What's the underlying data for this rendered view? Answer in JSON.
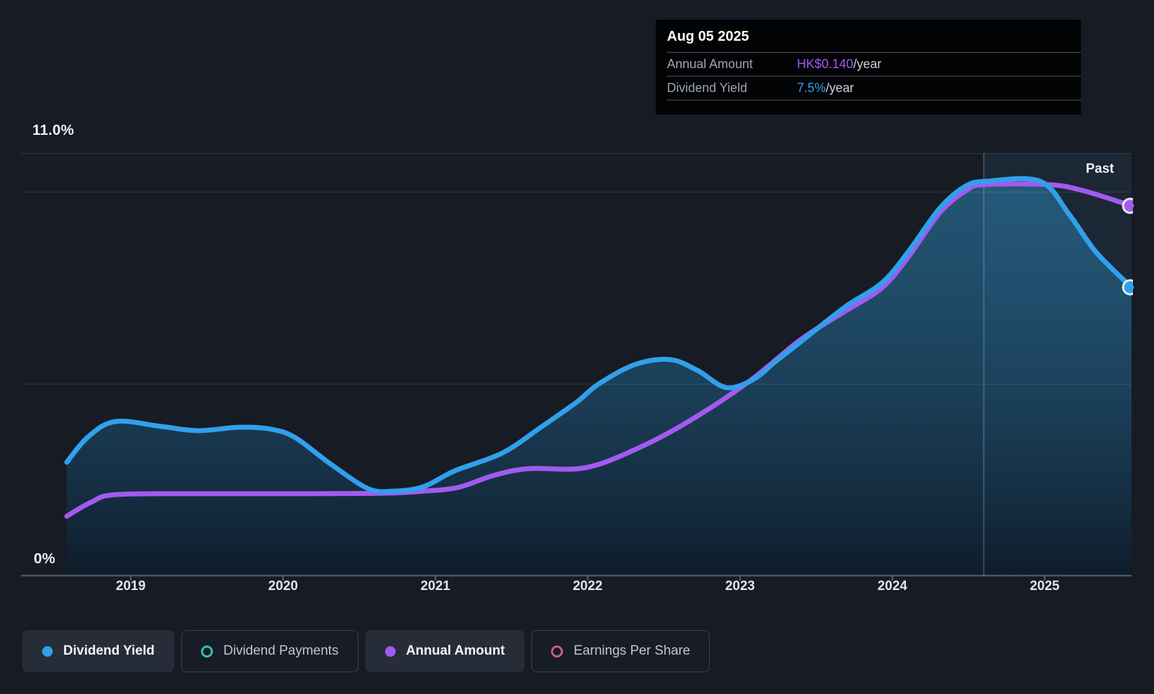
{
  "page": {
    "background": "#161b24"
  },
  "tooltip": {
    "date": "Aug 05 2025",
    "rows": [
      {
        "label": "Annual Amount",
        "value": "HK$0.140",
        "suffix": "/year",
        "color_key": "purple"
      },
      {
        "label": "Dividend Yield",
        "value": "7.5%",
        "suffix": "/year",
        "color_key": "blue"
      }
    ]
  },
  "axis": {
    "y_max_label": "11.0%",
    "y_min_label": "0%",
    "x_labels": [
      "2019",
      "2020",
      "2021",
      "2022",
      "2023",
      "2024",
      "2025"
    ],
    "past_label": "Past"
  },
  "colors": {
    "blue": "#31a0ea",
    "purple": "#a25af0",
    "teal": "#38c2b0",
    "pink": "#c75b8e",
    "grid": "rgba(255,255,255,0.12)",
    "axis_line": "#5c626a",
    "divider": "rgba(130,170,210,0.35)",
    "future_tint": "rgba(80,150,210,0.10)",
    "marker_stroke": "#e6ebef",
    "fill_top": "rgba(43,120,165,0.62)",
    "fill_bottom": "rgba(14,28,43,0.95)"
  },
  "legend": [
    {
      "label": "Dividend Yield",
      "marker": "dot",
      "color_key": "blue",
      "active": true
    },
    {
      "label": "Dividend Payments",
      "marker": "ring",
      "color_key": "teal",
      "active": false
    },
    {
      "label": "Annual Amount",
      "marker": "dot",
      "color_key": "purple",
      "active": true
    },
    {
      "label": "Earnings Per Share",
      "marker": "ring",
      "color_key": "pink",
      "active": false
    }
  ],
  "chart_data": {
    "type": "line",
    "x_axis": {
      "unit": "decimal_year",
      "range": [
        2018.58,
        2025.57
      ],
      "tick_years": [
        2019,
        2020,
        2021,
        2022,
        2023,
        2024,
        2025
      ]
    },
    "y_axis_yield": {
      "unit": "percent",
      "range": [
        0,
        11
      ],
      "gridlines_pct": [
        5,
        10,
        11
      ],
      "labeled": {
        "top": "11.0%",
        "bottom": "0%"
      }
    },
    "y_axis_amount": {
      "unit": "HK$/year",
      "end_value": 0.14
    },
    "past_divider_year": 2024.6,
    "legend_position": "bottom",
    "series": [
      {
        "name": "Dividend Yield",
        "axis": "yield",
        "color_key": "blue",
        "area_fill": true,
        "end_marker": true,
        "points": [
          [
            2018.58,
            2.96
          ],
          [
            2018.72,
            3.62
          ],
          [
            2018.9,
            4.02
          ],
          [
            2019.2,
            3.89
          ],
          [
            2019.44,
            3.78
          ],
          [
            2019.71,
            3.87
          ],
          [
            2019.92,
            3.82
          ],
          [
            2020.08,
            3.6
          ],
          [
            2020.31,
            2.92
          ],
          [
            2020.56,
            2.27
          ],
          [
            2020.73,
            2.21
          ],
          [
            2020.92,
            2.32
          ],
          [
            2021.13,
            2.74
          ],
          [
            2021.44,
            3.2
          ],
          [
            2021.7,
            3.89
          ],
          [
            2021.93,
            4.53
          ],
          [
            2022.07,
            4.99
          ],
          [
            2022.31,
            5.5
          ],
          [
            2022.54,
            5.63
          ],
          [
            2022.72,
            5.35
          ],
          [
            2022.91,
            4.9
          ],
          [
            2023.09,
            5.12
          ],
          [
            2023.23,
            5.57
          ],
          [
            2023.42,
            6.16
          ],
          [
            2023.69,
            7.0
          ],
          [
            2023.93,
            7.62
          ],
          [
            2024.1,
            8.41
          ],
          [
            2024.31,
            9.56
          ],
          [
            2024.48,
            10.14
          ],
          [
            2024.62,
            10.27
          ],
          [
            2024.97,
            10.27
          ],
          [
            2025.16,
            9.41
          ],
          [
            2025.34,
            8.41
          ],
          [
            2025.57,
            7.51
          ]
        ]
      },
      {
        "name": "Annual Amount",
        "axis": "amount",
        "color_key": "purple",
        "area_fill": false,
        "end_marker": true,
        "points": [
          [
            2018.58,
            0.0226
          ],
          [
            2018.74,
            0.0279
          ],
          [
            2018.9,
            0.0308
          ],
          [
            2019.44,
            0.0311
          ],
          [
            2020.0,
            0.0311
          ],
          [
            2020.65,
            0.0313
          ],
          [
            2020.92,
            0.0321
          ],
          [
            2021.15,
            0.0335
          ],
          [
            2021.38,
            0.038
          ],
          [
            2021.61,
            0.0406
          ],
          [
            2021.98,
            0.0409
          ],
          [
            2022.31,
            0.0478
          ],
          [
            2022.66,
            0.0584
          ],
          [
            2023.06,
            0.0736
          ],
          [
            2023.4,
            0.0895
          ],
          [
            2023.69,
            0.1001
          ],
          [
            2023.93,
            0.1089
          ],
          [
            2024.1,
            0.1203
          ],
          [
            2024.31,
            0.1373
          ],
          [
            2024.48,
            0.1456
          ],
          [
            2024.6,
            0.148
          ],
          [
            2025.03,
            0.148
          ],
          [
            2025.26,
            0.1456
          ],
          [
            2025.57,
            0.14
          ]
        ]
      }
    ]
  }
}
